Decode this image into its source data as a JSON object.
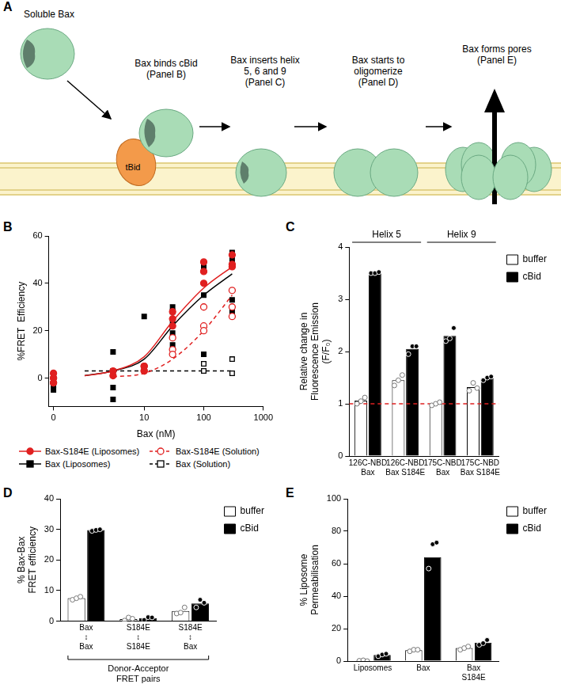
{
  "diagram": {
    "panel_label": "A",
    "steps": [
      {
        "label": [
          "Soluble Bax"
        ]
      },
      {
        "label": [
          "Bax binds cBid",
          "(Panel B)"
        ]
      },
      {
        "label": [
          "Bax inserts helix",
          "5, 6 and 9",
          "(Panel C)"
        ]
      },
      {
        "label": [
          "Bax starts to",
          "oligomerize",
          "(Panel D)"
        ]
      },
      {
        "label": [
          "Bax forms pores",
          "(Panel E)"
        ]
      }
    ],
    "binding_partner": "tBid"
  },
  "chart_data": [
    {
      "panel_label": "B",
      "type": "scatter",
      "x_label": "Bax (nM)",
      "y_label": "%FRET  Efficiency",
      "log": "x",
      "grid": false,
      "legend": "bottom",
      "xlim": [
        0.25,
        1000
      ],
      "xticks": [
        {
          "value": 0.3,
          "label": "0"
        },
        10,
        100,
        1000
      ],
      "ylim": [
        -12,
        60
      ],
      "yticks": [
        0,
        20,
        40,
        60
      ],
      "series": [
        {
          "name": "Bax-S184E (Liposomes)",
          "color": "#e02020",
          "marker": "circle",
          "line_style": "solid",
          "x": [
            0.3,
            0.3,
            0.3,
            3,
            3,
            10,
            10,
            30,
            30,
            30,
            100,
            100,
            100,
            300,
            300,
            300
          ],
          "values": [
            0,
            2,
            -2,
            3,
            1,
            3,
            5,
            22,
            28,
            25,
            49,
            45,
            40,
            48,
            47,
            52
          ],
          "fit": {
            "x": [
              1,
              3,
              10,
              30,
              100,
              300
            ],
            "values": [
              1,
              3,
              9,
              24,
              38,
              47
            ]
          }
        },
        {
          "name": "Bax-S184E (Solution)",
          "color": "#e02020",
          "marker": "circle-open",
          "line_style": "dashed",
          "x": [
            0.3,
            0.3,
            10,
            10,
            30,
            30,
            30,
            100,
            100,
            100,
            300,
            300,
            300
          ],
          "values": [
            0,
            -2,
            5,
            3,
            12,
            17,
            10,
            22,
            30,
            20,
            37,
            30,
            26
          ],
          "fit": {
            "x": [
              3,
              10,
              30,
              100,
              300
            ],
            "values": [
              0.5,
              2,
              8,
              20,
              35
            ]
          }
        },
        {
          "name": "Bax (Liposomes)",
          "color": "#000000",
          "marker": "square",
          "line_style": "solid",
          "x": [
            0.3,
            0.3,
            0.3,
            0.3,
            3,
            3,
            3,
            3,
            10,
            10,
            10,
            30,
            30,
            30,
            30,
            30,
            100,
            100,
            100,
            100,
            300,
            300,
            300,
            300
          ],
          "values": [
            -3,
            2,
            -5,
            0,
            11,
            3,
            -4,
            -9,
            26,
            5,
            4,
            30,
            28,
            23,
            19,
            14,
            47,
            35,
            21,
            10,
            53,
            50,
            33,
            28
          ],
          "fit": {
            "x": [
              1,
              3,
              10,
              30,
              100,
              300
            ],
            "values": [
              1,
              3,
              8,
              22,
              35,
              44
            ]
          }
        },
        {
          "name": "Bax (Solution)",
          "color": "#000000",
          "marker": "square-open",
          "line_style": "dashed",
          "x": [
            0.3,
            0.3,
            100,
            100,
            300,
            300
          ],
          "values": [
            1,
            -1,
            6,
            3,
            8,
            2
          ],
          "fit": {
            "x": [
              1,
              300
            ],
            "values": [
              3,
              3
            ]
          }
        }
      ]
    },
    {
      "panel_label": "C",
      "type": "bar",
      "y_label": [
        "Relative change in",
        "Fluorescence Emission",
        "(F/F₀)"
      ],
      "groups": [
        {
          "name": "Helix 5",
          "categories": [
            [
              "126C-NBD",
              "Bax"
            ],
            [
              "126C-NBD",
              "Bax S184E"
            ]
          ]
        },
        {
          "name": "Helix 9",
          "categories": [
            [
              "175C-NBD",
              "Bax"
            ],
            [
              "175C-NBD",
              "Bax S184E"
            ]
          ]
        }
      ],
      "ylim": [
        0,
        4
      ],
      "yticks": [
        0,
        1,
        2,
        3,
        4
      ],
      "grid": false,
      "legend": "upper right",
      "reference_line": {
        "value": 1,
        "color": "#e02020",
        "line_style": "dashed"
      },
      "series": [
        {
          "name": "buffer",
          "color": "#ffffff",
          "values": [
            1.06,
            1.45,
            1.0,
            1.32
          ],
          "replicates": [
            [
              1.0,
              1.05,
              1.12
            ],
            [
              1.35,
              1.45,
              1.55
            ],
            [
              0.97,
              1.0,
              1.03
            ],
            [
              1.25,
              1.4,
              1.3
            ]
          ]
        },
        {
          "name": "cBid",
          "color": "#000000",
          "values": [
            3.5,
            2.05,
            2.3,
            1.49
          ],
          "replicates": [
            [
              3.5,
              3.5,
              3.52
            ],
            [
              1.95,
              2.1,
              2.1
            ],
            [
              2.2,
              2.25,
              2.45
            ],
            [
              1.45,
              1.5,
              1.52
            ]
          ]
        }
      ]
    },
    {
      "panel_label": "D",
      "type": "bar",
      "x_label": [
        "Donor-Acceptor",
        "FRET pairs"
      ],
      "y_label": [
        "% Bax-Bax",
        "FRET efficiency"
      ],
      "categories": [
        [
          "Bax",
          "↕",
          "Bax"
        ],
        [
          "S184E",
          "↕",
          "S184E"
        ],
        [
          "S184E",
          "↕",
          "Bax"
        ]
      ],
      "ylim": [
        0,
        40
      ],
      "yticks": [
        0,
        10,
        20,
        30,
        40
      ],
      "grid": false,
      "legend": "upper right",
      "series": [
        {
          "name": "buffer",
          "color": "#ffffff",
          "values": [
            7.5,
            0.7,
            3.3
          ],
          "replicates": [
            [
              7,
              7.5,
              8
            ],
            [
              0.2,
              1.2,
              0.8
            ],
            [
              2.5,
              2.8,
              4.5
            ]
          ]
        },
        {
          "name": "cBid",
          "color": "#000000",
          "values": [
            29.8,
            1.0,
            5.8
          ],
          "replicates": [
            [
              29.5,
              29.8,
              30
            ],
            [
              0.4,
              1.3,
              1.2
            ],
            [
              4.5,
              7,
              6
            ]
          ]
        }
      ]
    },
    {
      "panel_label": "E",
      "type": "bar",
      "y_label": [
        "% Liposome",
        "Permeabilisation"
      ],
      "categories": [
        "Liposomes",
        "Bax",
        [
          "Bax",
          "S184E"
        ]
      ],
      "ylim": [
        0,
        100
      ],
      "yticks": [
        0,
        20,
        40,
        60,
        80,
        100
      ],
      "grid": false,
      "legend": "upper right",
      "series": [
        {
          "name": "buffer",
          "color": "#ffffff",
          "values": [
            0.2,
            6.7,
            8
          ],
          "replicates": [
            [
              0.2,
              0.5,
              0
            ],
            [
              6,
              7,
              7
            ],
            [
              7,
              8,
              9
            ]
          ]
        },
        {
          "name": "cBid",
          "color": "#000000",
          "values": [
            3.8,
            64,
            11.3
          ],
          "replicates": [
            [
              3,
              4,
              4.5
            ],
            [
              57,
              72,
              73
            ],
            [
              10,
              11,
              13
            ]
          ]
        }
      ]
    }
  ]
}
